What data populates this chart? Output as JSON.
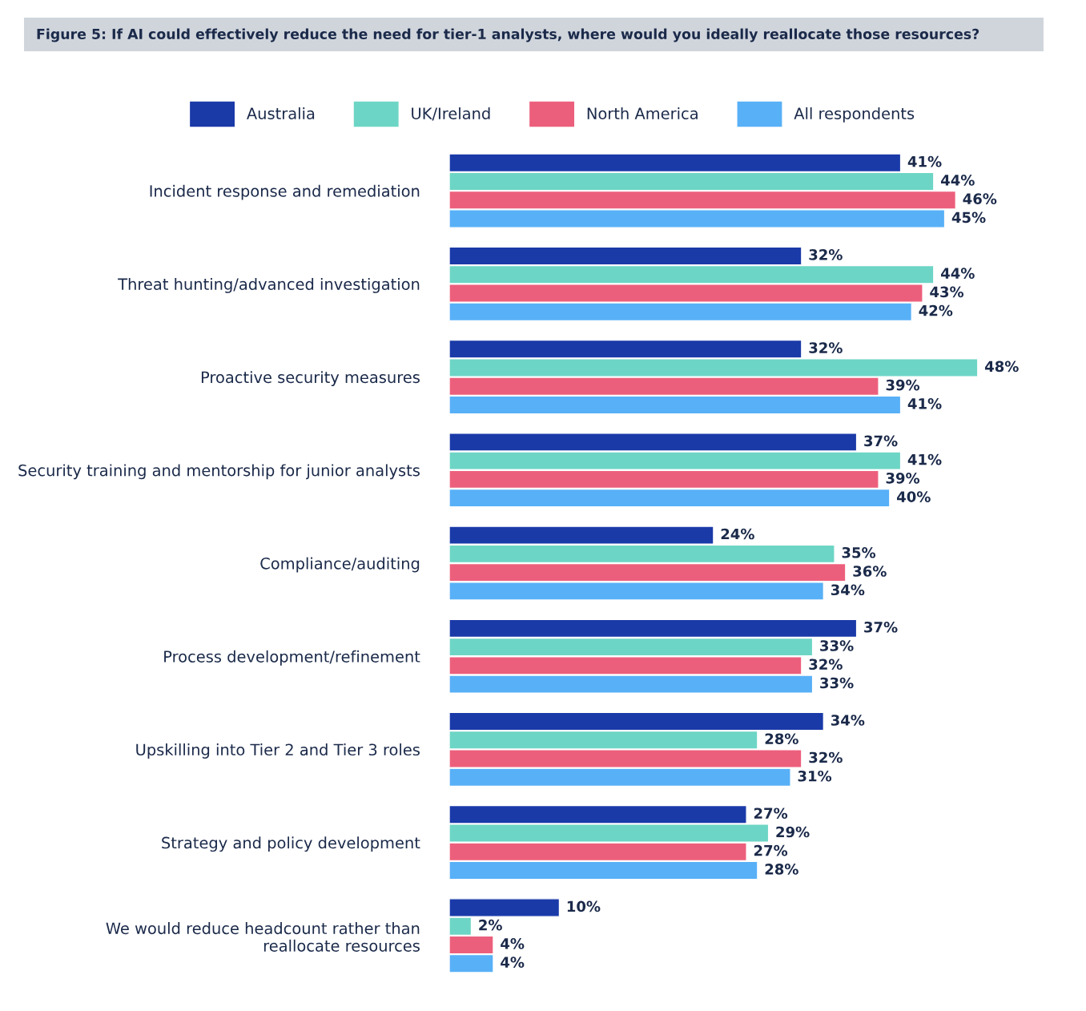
{
  "chart_data": {
    "type": "bar",
    "orientation": "horizontal",
    "title": "Figure 5: If AI could effectively reduce the need for tier-1 analysts, where would you ideally reallocate those resources?",
    "categories": [
      "Incident response and remediation",
      "Threat hunting/advanced investigation",
      "Proactive security measures",
      "Security training and mentorship for junior analysts",
      "Compliance/auditing",
      "Process development/refinement",
      "Upskilling into Tier 2 and Tier 3 roles",
      "Strategy and policy development",
      "We would reduce headcount rather than\nreallocate resources"
    ],
    "series": [
      {
        "name": "Australia",
        "color": "#1a3aa8",
        "values": [
          41,
          32,
          32,
          37,
          24,
          37,
          34,
          27,
          10
        ],
        "value_labels": [
          "41%",
          "32%",
          "32%",
          "37%",
          "24%",
          "37%",
          "34%",
          "27%",
          "10%"
        ]
      },
      {
        "name": "UK/Ireland",
        "color": "#6dd5c5",
        "values": [
          44,
          44,
          48,
          41,
          35,
          33,
          28,
          29,
          2
        ],
        "value_labels": [
          "44%",
          "44%",
          "48%",
          "41%",
          "35%",
          "33%",
          "28%",
          "29%",
          "2%"
        ]
      },
      {
        "name": "North America",
        "color": "#ec5f7c",
        "values": [
          46,
          43,
          39,
          39,
          36,
          32,
          32,
          27,
          4
        ],
        "value_labels": [
          "46%",
          "43%",
          "39%",
          "39%",
          "36%",
          "32%",
          "32%",
          "27%",
          "4%"
        ]
      },
      {
        "name": "All respondents",
        "color": "#58b0f7",
        "values": [
          45,
          42,
          41,
          40,
          34,
          33,
          31,
          28,
          4
        ],
        "value_labels": [
          "45%",
          "42%",
          "41%",
          "40%",
          "34%",
          "33%",
          "31%",
          "28%",
          "4%"
        ]
      }
    ],
    "legend": "top",
    "grid": false
  }
}
